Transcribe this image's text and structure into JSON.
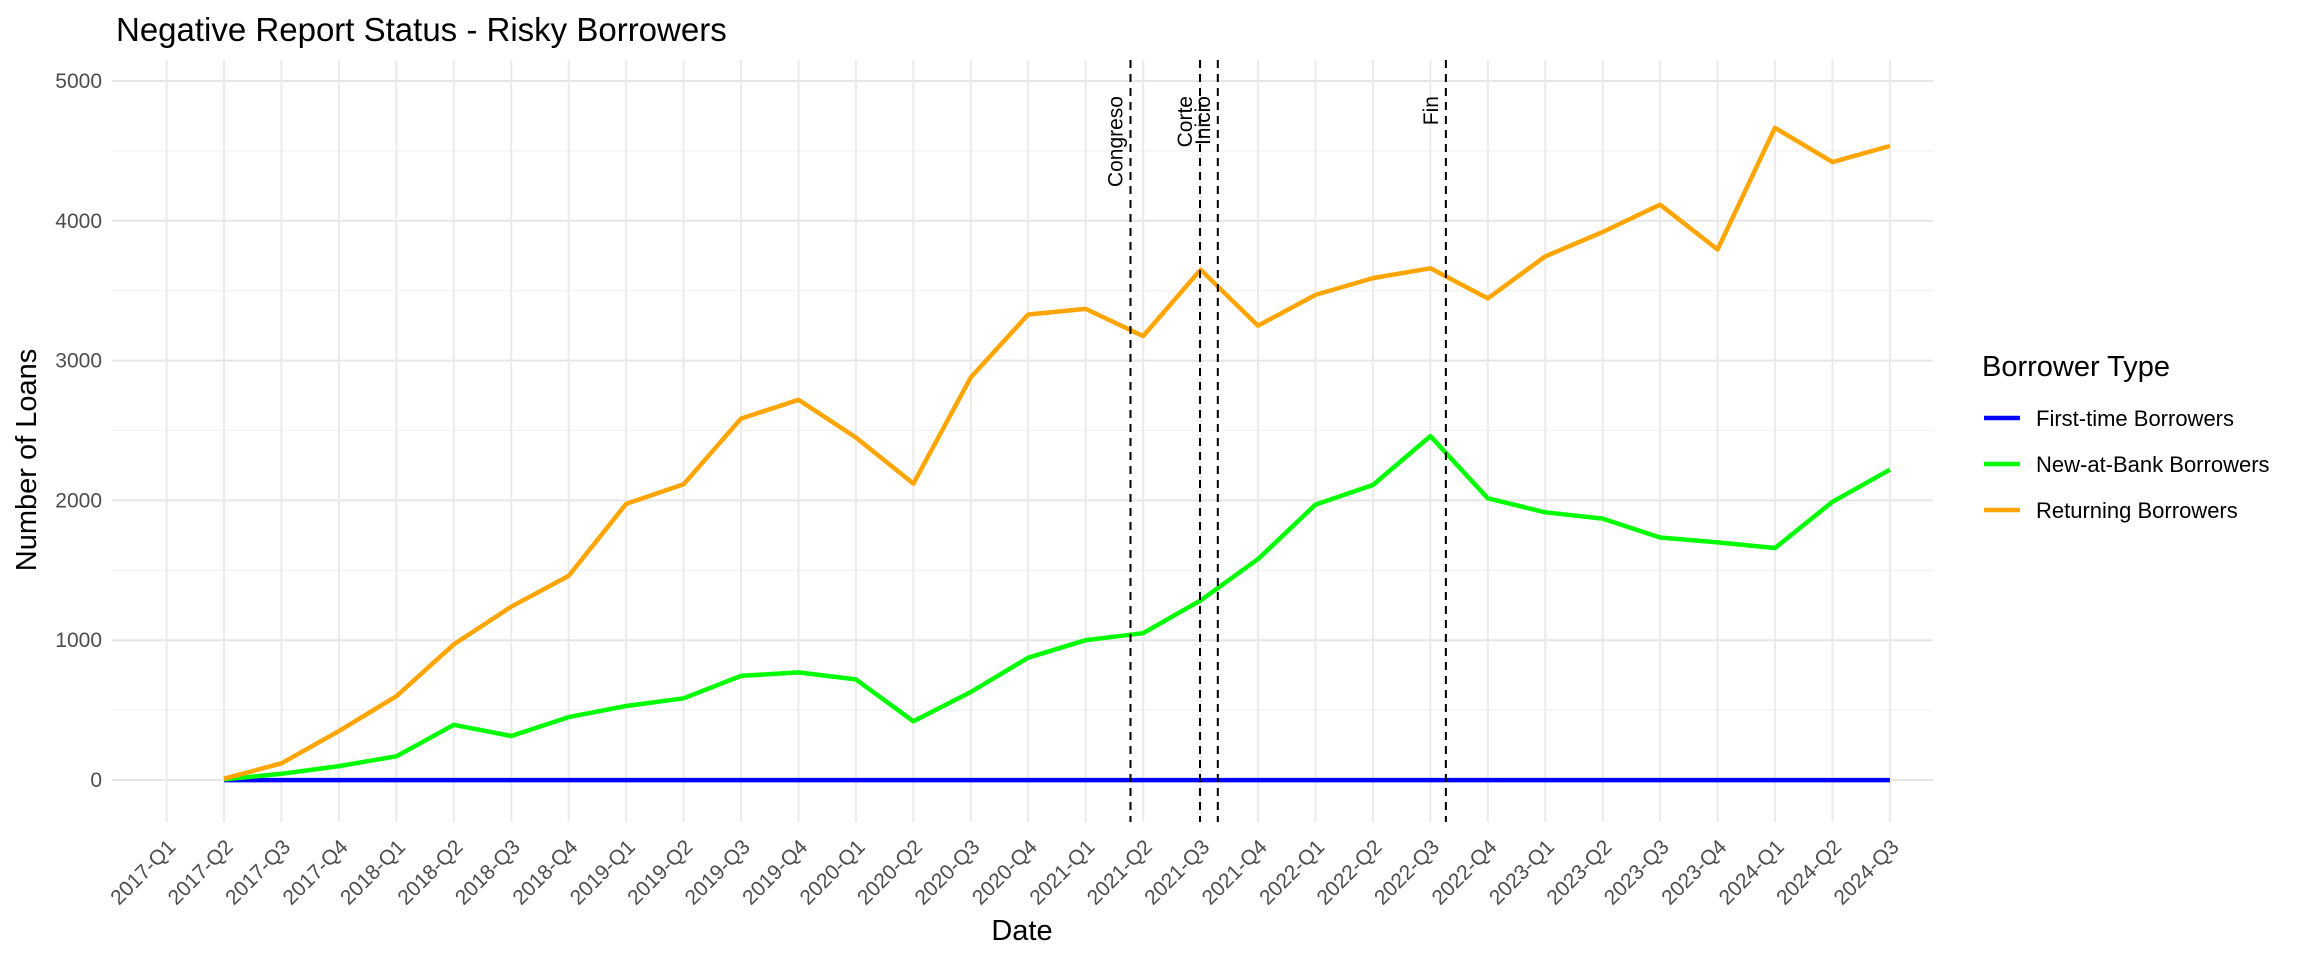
{
  "chart_data": {
    "type": "line",
    "title": "Negative Report Status - Risky Borrowers",
    "xlabel": "Date",
    "ylabel": "Number of Loans",
    "ylim": [
      -300,
      5150
    ],
    "yticks": [
      0,
      1000,
      2000,
      3000,
      4000,
      5000
    ],
    "grid": true,
    "legend_position": "right",
    "legend_title": "Borrower Type",
    "x": [
      "2017-Q1",
      "2017-Q2",
      "2017-Q3",
      "2017-Q4",
      "2018-Q1",
      "2018-Q2",
      "2018-Q3",
      "2018-Q4",
      "2019-Q1",
      "2019-Q2",
      "2019-Q3",
      "2019-Q4",
      "2020-Q1",
      "2020-Q2",
      "2020-Q3",
      "2020-Q4",
      "2021-Q1",
      "2021-Q2",
      "2021-Q3",
      "2021-Q4",
      "2022-Q1",
      "2022-Q2",
      "2022-Q3",
      "2022-Q4",
      "2023-Q1",
      "2023-Q2",
      "2023-Q3",
      "2023-Q4",
      "2024-Q1",
      "2024-Q2",
      "2024-Q3"
    ],
    "series": [
      {
        "name": "First-time Borrowers",
        "color": "#0000ff",
        "values": [
          null,
          0,
          0,
          0,
          0,
          0,
          0,
          0,
          0,
          0,
          0,
          0,
          0,
          0,
          0,
          0,
          0,
          0,
          0,
          0,
          0,
          0,
          0,
          0,
          0,
          0,
          0,
          0,
          0,
          0,
          0
        ]
      },
      {
        "name": "New-at-Bank Borrowers",
        "color": "#00ff00",
        "values": [
          null,
          5,
          45,
          100,
          170,
          395,
          315,
          450,
          530,
          585,
          745,
          770,
          720,
          420,
          630,
          875,
          1000,
          1050,
          1285,
          1580,
          1970,
          2110,
          2460,
          2015,
          1915,
          1870,
          1735,
          1700,
          1660,
          1990,
          2220
        ]
      },
      {
        "name": "Returning Borrowers",
        "color": "#ffa500",
        "values": [
          null,
          10,
          120,
          350,
          600,
          970,
          1240,
          1460,
          1975,
          2115,
          2585,
          2720,
          2450,
          2120,
          2880,
          3330,
          3370,
          3175,
          3650,
          3250,
          3470,
          3590,
          3660,
          3445,
          3745,
          3920,
          4115,
          3795,
          4665,
          4420,
          4535
        ]
      }
    ],
    "vlines": [
      {
        "label": "Congreso",
        "x": 16.78
      },
      {
        "label": "Corte",
        "x": 17.99
      },
      {
        "label": "Inicio",
        "x": 18.3
      },
      {
        "label": "Fin",
        "x": 22.27
      }
    ]
  }
}
